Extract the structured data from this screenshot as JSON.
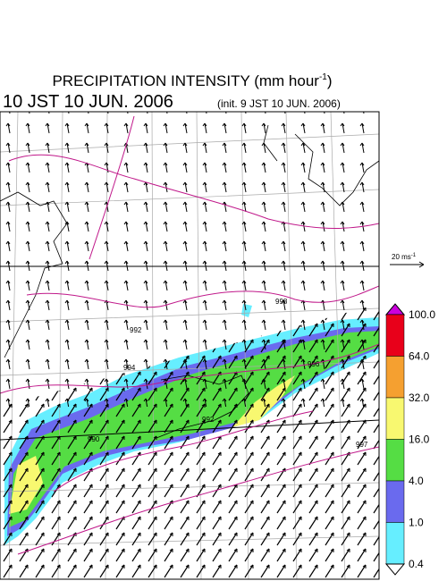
{
  "header": {
    "title": {
      "text": "PRECIPITATION INTENSITY (mm hour",
      "exponent": "-1",
      "close": ")"
    },
    "valid_time": "10 JST 10 JUN. 2006",
    "init_time": "(init. 9 JST 10 JUN. 2006)"
  },
  "wind_scale": {
    "text": "20 ms",
    "exponent": "-1"
  },
  "colorbar": {
    "labels": [
      "100.0",
      "64.0",
      "32.0",
      "16.0",
      "4.0",
      "1.0",
      "0.4"
    ],
    "colors": [
      "#cc00dd",
      "#e8001a",
      "#f5a030",
      "#f8f870",
      "#55dd44",
      "#6a6aee",
      "#66eeff",
      "#ffffff"
    ]
  },
  "contour_labels": [
    "998",
    "992",
    "994",
    "996",
    "992",
    "990",
    "997"
  ]
}
